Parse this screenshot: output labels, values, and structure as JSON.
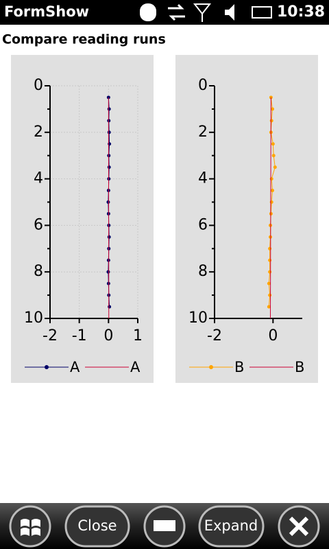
{
  "status_bar": {
    "app_name": "FormShow",
    "time": "10:38"
  },
  "header": {
    "title": "Compare reading runs"
  },
  "toolbar": {
    "buttons": [
      "Close",
      "Expand"
    ]
  },
  "chart_data": [
    {
      "type": "line",
      "xlim": [
        -2,
        1
      ],
      "xticks": [
        -2,
        -1,
        0,
        1
      ],
      "ylim": [
        10,
        0
      ],
      "yticks": [
        0,
        2,
        4,
        6,
        8,
        10
      ],
      "y_minor_ticks": [
        1,
        3,
        5,
        7,
        9
      ],
      "grid": true,
      "series": [
        {
          "name": "A",
          "color": "#000066",
          "markers": true,
          "x": [
            0,
            0.02,
            0.01,
            0.02,
            0.03,
            0.01,
            0.02,
            0.01,
            0,
            -0.01,
            0,
            0.01,
            0.02,
            0.01,
            0,
            -0.01,
            0,
            0.01,
            0.03
          ],
          "y": [
            0.5,
            1,
            1.5,
            2,
            2.5,
            3,
            3.5,
            4,
            4.5,
            5,
            5.5,
            6,
            6.5,
            7,
            7.5,
            8,
            8.5,
            9,
            9.5
          ]
        },
        {
          "name": "A",
          "color": "#cc0033",
          "markers": false,
          "x": [
            0,
            0.01
          ],
          "y": [
            0.5,
            10
          ]
        }
      ]
    },
    {
      "type": "line",
      "xlim": [
        -2,
        1
      ],
      "xticks": [
        -2,
        0
      ],
      "ylim": [
        10,
        0
      ],
      "yticks": [
        0,
        2,
        4,
        6,
        8,
        10
      ],
      "y_minor_ticks": [
        1,
        3,
        5,
        7,
        9
      ],
      "grid": false,
      "series": [
        {
          "name": "B",
          "color": "#ffa500",
          "markers": true,
          "x": [
            -0.07,
            -0.02,
            -0.05,
            -0.07,
            0,
            0.02,
            0.07,
            -0.05,
            -0.02,
            -0.05,
            -0.07,
            -0.09,
            -0.09,
            -0.11,
            -0.11,
            -0.11,
            -0.14,
            -0.11,
            -0.14
          ],
          "y": [
            0.5,
            1,
            1.5,
            2,
            2.5,
            3,
            3.5,
            4,
            4.5,
            5,
            5.5,
            6,
            6.5,
            7,
            7.5,
            8,
            8.5,
            9,
            9.5
          ]
        },
        {
          "name": "B",
          "color": "#cc0033",
          "markers": false,
          "x": [
            -0.07,
            -0.09
          ],
          "y": [
            0.5,
            10
          ]
        }
      ]
    }
  ]
}
